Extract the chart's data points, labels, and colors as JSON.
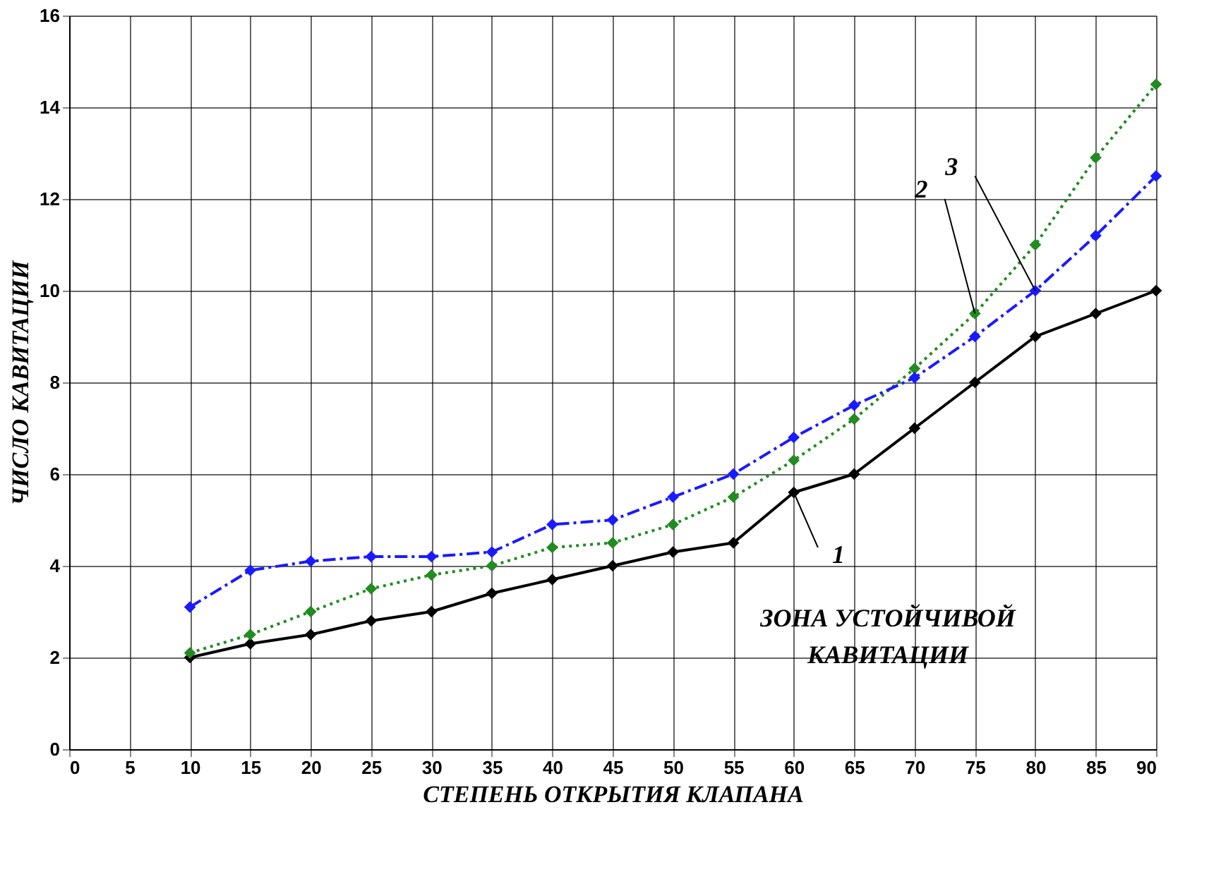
{
  "chart_data": {
    "type": "line",
    "xlabel": "СТЕПЕНЬ ОТКРЫТИЯ КЛАПАНА",
    "ylabel": "ЧИСЛО КАВИТАЦИИ",
    "x": [
      10,
      15,
      20,
      25,
      30,
      35,
      40,
      45,
      50,
      55,
      60,
      65,
      70,
      75,
      80,
      85,
      90
    ],
    "series": [
      {
        "name": "1",
        "color": "#000000",
        "line_style": "solid",
        "values": [
          2.0,
          2.3,
          2.5,
          2.8,
          3.0,
          3.4,
          3.7,
          4.0,
          4.3,
          4.5,
          5.6,
          6.0,
          7.0,
          8.0,
          9.0,
          9.5,
          10.0
        ]
      },
      {
        "name": "2",
        "color": "#228b22",
        "line_style": "dotted",
        "values": [
          2.1,
          2.5,
          3.0,
          3.5,
          3.8,
          4.0,
          4.4,
          4.5,
          4.9,
          5.5,
          6.3,
          7.2,
          8.3,
          9.5,
          11.0,
          12.9,
          14.5
        ]
      },
      {
        "name": "3",
        "color": "#1a1aff",
        "line_style": "dashed",
        "values": [
          3.1,
          3.9,
          4.1,
          4.2,
          4.2,
          4.3,
          4.9,
          5.0,
          5.5,
          6.0,
          6.8,
          7.5,
          8.1,
          9.0,
          10.0,
          11.2,
          12.5
        ]
      }
    ],
    "annotations": [
      "ЗОНА УСТОЙЧИВОЙ\nКАВИТАЦИИ"
    ],
    "xlim": [
      0,
      90
    ],
    "xticks": [
      0,
      5,
      10,
      15,
      20,
      25,
      30,
      35,
      40,
      45,
      50,
      55,
      60,
      65,
      70,
      75,
      80,
      85,
      90
    ],
    "ylim": [
      0,
      16
    ],
    "yticks": [
      0,
      2,
      4,
      6,
      8,
      10,
      12,
      14,
      16
    ],
    "grid": true,
    "marker": "diamond"
  }
}
